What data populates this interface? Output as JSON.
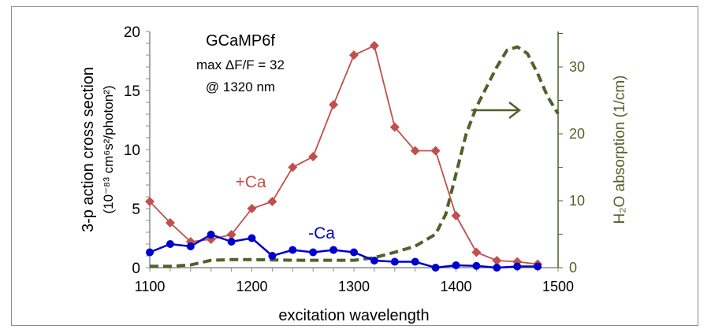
{
  "chart_data": {
    "type": "line",
    "title": "GCaMP6f",
    "annotations": [
      "max ΔF/F = 32",
      "@ 1320 nm"
    ],
    "xlabel": "excitation wavelength",
    "ylabel_line1": "3-p action cross section",
    "ylabel_line2": "(10⁻⁸³ cm⁶s²/photon²)",
    "y2label": "H₂O absorption (1/cm)",
    "xlim": [
      1100,
      1500
    ],
    "ylim": [
      0,
      20
    ],
    "y2lim": [
      0,
      35
    ],
    "xticks": [
      1100,
      1200,
      1300,
      1400,
      1500
    ],
    "yticks": [
      0,
      5,
      10,
      15,
      20
    ],
    "y2ticks": [
      0,
      10,
      20,
      30
    ],
    "grid": false,
    "colors": {
      "plus_ca": "#c0504d",
      "minus_ca": "#0000cc",
      "water": "#4f6228",
      "axis": "#8c8c8c"
    },
    "series": [
      {
        "name": "+Ca",
        "axis": "left",
        "marker": "diamond",
        "x": [
          1100,
          1120,
          1140,
          1160,
          1180,
          1200,
          1220,
          1240,
          1260,
          1280,
          1300,
          1320,
          1340,
          1360,
          1380,
          1400,
          1420,
          1440,
          1460,
          1480
        ],
        "values": [
          5.6,
          3.8,
          2.2,
          2.4,
          2.8,
          5.0,
          5.6,
          8.5,
          9.4,
          13.8,
          18.0,
          18.8,
          11.9,
          9.9,
          9.9,
          4.4,
          1.3,
          0.6,
          0.5,
          0.3
        ]
      },
      {
        "name": "-Ca",
        "axis": "left",
        "marker": "circle",
        "x": [
          1100,
          1120,
          1140,
          1160,
          1180,
          1200,
          1220,
          1240,
          1260,
          1280,
          1300,
          1320,
          1340,
          1360,
          1380,
          1400,
          1420,
          1440,
          1460,
          1480
        ],
        "values": [
          1.3,
          2.0,
          1.8,
          2.8,
          2.2,
          2.5,
          1.0,
          1.5,
          1.3,
          1.5,
          1.3,
          0.6,
          0.5,
          0.5,
          0.0,
          0.2,
          0.15,
          0.0,
          0.1,
          0.1
        ]
      },
      {
        "axis": "right",
        "style": "dashed",
        "x": [
          1100,
          1120,
          1140,
          1160,
          1180,
          1200,
          1250,
          1300,
          1320,
          1340,
          1360,
          1380,
          1390,
          1400,
          1410,
          1420,
          1440,
          1450,
          1460,
          1470,
          1480,
          1490,
          1500
        ],
        "values": [
          0.2,
          0.2,
          0.4,
          1.1,
          1.2,
          1.2,
          1.1,
          1.1,
          1.5,
          2.3,
          3.2,
          5.0,
          8,
          14,
          20,
          24,
          30,
          32.5,
          33,
          32,
          29,
          25.5,
          23
        ]
      }
    ]
  }
}
